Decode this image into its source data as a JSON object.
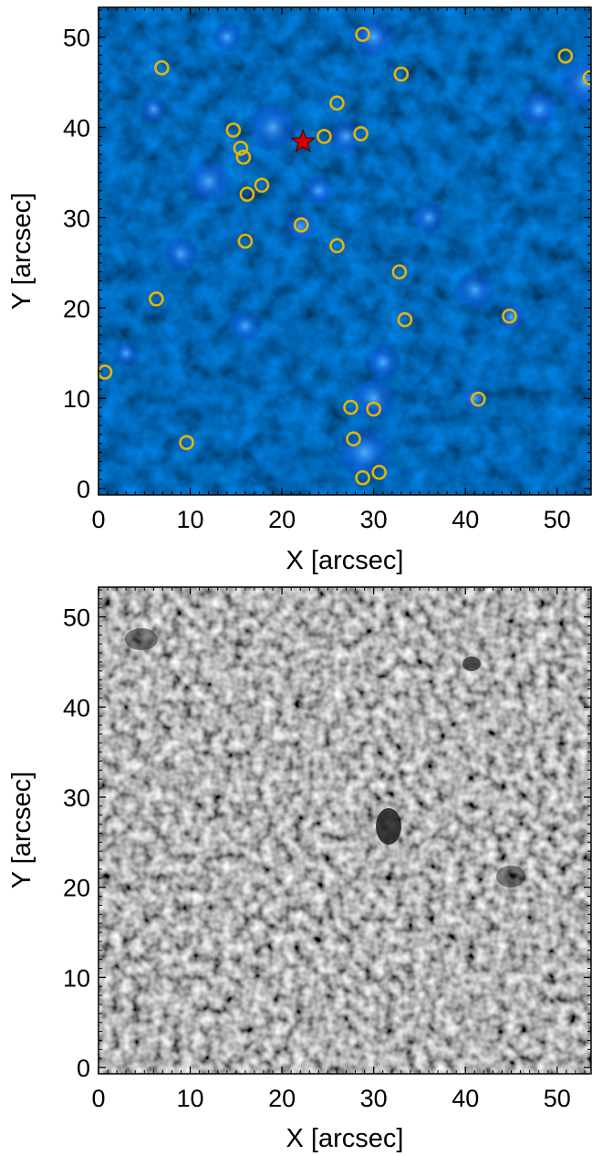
{
  "panels": [
    {
      "id": "top",
      "xlabel": "X [arcsec]",
      "ylabel": "Y [arcsec]",
      "image_kind": "blue-intensity-map"
    },
    {
      "id": "bottom",
      "xlabel": "X [arcsec]",
      "ylabel": "Y [arcsec]",
      "image_kind": "granulation-map"
    }
  ],
  "chart_data": [
    {
      "type": "scatter",
      "title": "",
      "xlabel": "X [arcsec]",
      "ylabel": "Y [arcsec]",
      "xlim": [
        0,
        53.7
      ],
      "ylim": [
        -0.7,
        53.3
      ],
      "xticks": [
        0,
        10,
        20,
        30,
        40,
        50
      ],
      "yticks": [
        0,
        10,
        20,
        30,
        40,
        50
      ],
      "tick_labels_x": [
        "0",
        "10",
        "20",
        "30",
        "40",
        "50"
      ],
      "tick_labels_y": [
        "0",
        "10",
        "20",
        "30",
        "40",
        "50"
      ],
      "grid": false,
      "background": "blue intensity map",
      "series": [
        {
          "marker": "circle",
          "color": "#e8b400",
          "points": [
            [
              0.7,
              12.9
            ],
            [
              6.9,
              46.6
            ],
            [
              6.3,
              21.0
            ],
            [
              9.6,
              5.1
            ],
            [
              14.7,
              39.7
            ],
            [
              15.5,
              37.7
            ],
            [
              15.8,
              36.7
            ],
            [
              16.2,
              32.6
            ],
            [
              16.0,
              27.4
            ],
            [
              17.8,
              33.6
            ],
            [
              22.1,
              29.2
            ],
            [
              24.6,
              39.0
            ],
            [
              26.0,
              42.7
            ],
            [
              26.0,
              26.9
            ],
            [
              27.5,
              9.0
            ],
            [
              27.8,
              5.5
            ],
            [
              28.6,
              39.3
            ],
            [
              28.8,
              50.3
            ],
            [
              28.8,
              1.2
            ],
            [
              30.0,
              8.8
            ],
            [
              30.6,
              1.8
            ],
            [
              32.8,
              24.0
            ],
            [
              33.0,
              45.9
            ],
            [
              33.4,
              18.7
            ],
            [
              41.4,
              9.9
            ],
            [
              44.8,
              19.1
            ],
            [
              50.9,
              47.9
            ],
            [
              53.6,
              45.5
            ]
          ]
        },
        {
          "marker": "star",
          "color": "#d40000",
          "points": [
            [
              22.3,
              38.4
            ]
          ]
        }
      ]
    },
    {
      "type": "heatmap",
      "title": "",
      "xlabel": "X [arcsec]",
      "ylabel": "Y [arcsec]",
      "xlim": [
        0,
        53.7
      ],
      "ylim": [
        -0.7,
        53.3
      ],
      "xticks": [
        0,
        10,
        20,
        30,
        40,
        50
      ],
      "yticks": [
        0,
        10,
        20,
        30,
        40,
        50
      ],
      "tick_labels_x": [
        "0",
        "10",
        "20",
        "30",
        "40",
        "50"
      ],
      "tick_labels_y": [
        "0",
        "10",
        "20",
        "30",
        "40",
        "50"
      ],
      "grid": false,
      "background": "grayscale granulation image"
    }
  ],
  "colors": {
    "marker_circle": "#e8b400",
    "marker_star": "#d40000",
    "blue_background": "#00082e",
    "gray_background": "#6e6e6e"
  }
}
